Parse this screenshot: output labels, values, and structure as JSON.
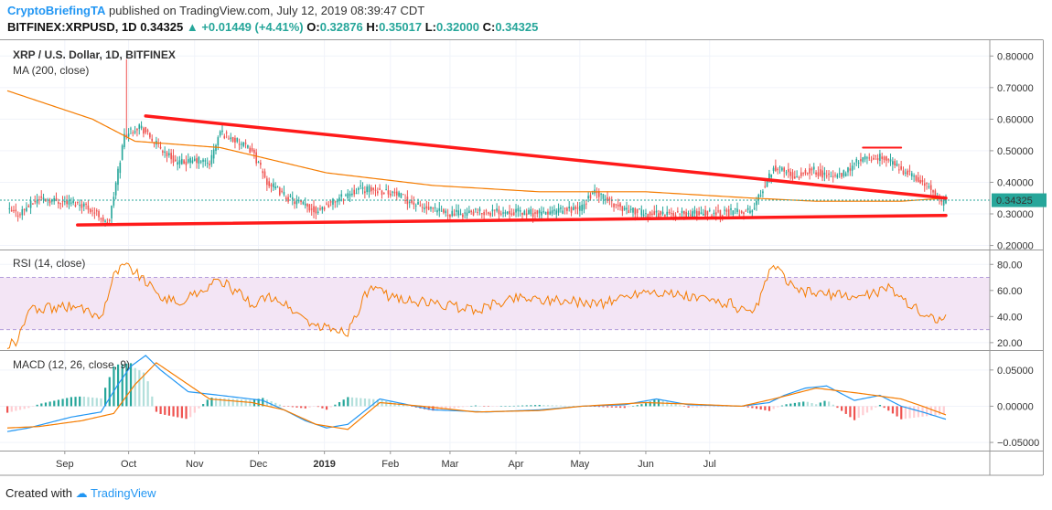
{
  "header": {
    "author": "CryptoBriefingTA",
    "published_text": "published on TradingView.com, July 12, 2019 08:39:47 CDT",
    "symbol": "BITFINEX:XRPUSD, 1D",
    "last": "0.34325",
    "change": "+0.01449 (+4.41%)",
    "o_label": "O:",
    "o": "0.32876",
    "h_label": "H:",
    "h": "0.35017",
    "l_label": "L:",
    "l": "0.32000",
    "c_label": "C:",
    "c": "0.34325"
  },
  "footer": {
    "created_with": "Created with",
    "brand": "TradingView"
  },
  "colors": {
    "up": "#26a69a",
    "down": "#ef5350",
    "ma": "#f57c00",
    "trend": "#ff1a1a",
    "rsi": "#f57c00",
    "rsi_band": "#f3e5f5",
    "macd": "#2196f3",
    "signal": "#f57c00"
  },
  "chart_data": [
    {
      "type": "candlestick",
      "title": "XRP / U.S. Dollar, 1D, BITFINEX",
      "indicator_label": "MA (200, close)",
      "x_axis_labels": [
        "Sep",
        "Oct",
        "Nov",
        "Dec",
        "2019",
        "Feb",
        "Mar",
        "Apr",
        "May",
        "Jun",
        "Jul"
      ],
      "y_ticks": [
        0.2,
        0.3,
        0.4,
        0.5,
        0.6,
        0.7,
        0.8
      ],
      "y_tick_labels": [
        "0.20000",
        "0.30000",
        "0.40000",
        "0.50000",
        "0.60000",
        "0.70000",
        "0.80000"
      ],
      "ylim": [
        0.19,
        0.85
      ],
      "last_price_label": "0.34325",
      "last_price": 0.34325,
      "price_path_date_index": [
        0,
        5,
        15,
        25,
        36,
        44,
        46,
        48,
        55,
        62,
        70,
        80,
        90,
        95,
        100,
        115,
        122,
        132,
        145,
        165,
        180,
        195,
        200,
        210,
        235,
        250,
        260,
        270,
        275,
        288,
        300,
        320,
        350,
        360,
        370,
        378,
        385,
        392,
        400,
        412,
        418,
        425,
        432,
        439,
        441
      ],
      "price_path_close": [
        0.31,
        0.3,
        0.35,
        0.34,
        0.33,
        0.29,
        0.27,
        0.28,
        0.55,
        0.58,
        0.52,
        0.46,
        0.47,
        0.46,
        0.56,
        0.5,
        0.4,
        0.35,
        0.31,
        0.38,
        0.37,
        0.32,
        0.31,
        0.3,
        0.31,
        0.3,
        0.31,
        0.32,
        0.37,
        0.32,
        0.3,
        0.3,
        0.31,
        0.45,
        0.42,
        0.44,
        0.42,
        0.42,
        0.47,
        0.48,
        0.45,
        0.42,
        0.39,
        0.33,
        0.34325
      ],
      "ma200_date_index": [
        0,
        40,
        60,
        100,
        150,
        200,
        250,
        300,
        350,
        380,
        420,
        441
      ],
      "ma200_value": [
        0.69,
        0.6,
        0.53,
        0.51,
        0.43,
        0.39,
        0.37,
        0.37,
        0.35,
        0.34,
        0.34,
        0.35
      ],
      "trendlines": [
        {
          "name": "upper-resistance",
          "from": [
            65,
            0.61
          ],
          "to": [
            441,
            0.35
          ]
        },
        {
          "name": "lower-support",
          "from": [
            33,
            0.265
          ],
          "to": [
            441,
            0.295
          ]
        },
        {
          "name": "horizontal-resistance",
          "from": [
            402,
            0.51
          ],
          "to": [
            420,
            0.51
          ]
        }
      ]
    },
    {
      "type": "line",
      "title": "RSI (14, close)",
      "y_ticks": [
        20,
        40,
        60,
        80
      ],
      "y_tick_labels": [
        "20.00",
        "40.00",
        "60.00",
        "80.00"
      ],
      "ylim": [
        15,
        90
      ],
      "band": [
        30,
        70
      ],
      "rsi_date_index": [
        0,
        5,
        10,
        30,
        44,
        50,
        55,
        60,
        70,
        80,
        100,
        115,
        125,
        145,
        160,
        170,
        180,
        200,
        220,
        240,
        260,
        280,
        300,
        320,
        340,
        350,
        360,
        370,
        380,
        400,
        415,
        425,
        432,
        441
      ],
      "rsi_value": [
        18,
        22,
        45,
        48,
        40,
        72,
        80,
        75,
        58,
        50,
        68,
        50,
        55,
        32,
        28,
        62,
        55,
        50,
        45,
        55,
        52,
        50,
        60,
        55,
        50,
        40,
        80,
        60,
        58,
        55,
        62,
        48,
        40,
        38
      ]
    },
    {
      "type": "line+bar",
      "title": "MACD (12, 26, close, 9)",
      "y_ticks": [
        -0.05,
        0.0,
        0.05
      ],
      "y_tick_labels": [
        "−0.05000",
        "0.00000",
        "0.05000"
      ],
      "ylim": [
        -0.06,
        0.075
      ],
      "macd_date_index": [
        0,
        10,
        30,
        44,
        52,
        58,
        65,
        72,
        85,
        100,
        120,
        130,
        140,
        150,
        160,
        175,
        200,
        225,
        250,
        270,
        290,
        305,
        320,
        345,
        358,
        365,
        375,
        385,
        398,
        410,
        420,
        430,
        441
      ],
      "macd_value": [
        -0.035,
        -0.03,
        -0.015,
        -0.008,
        0.03,
        0.055,
        0.07,
        0.05,
        0.02,
        0.015,
        0.008,
        -0.005,
        -0.02,
        -0.03,
        -0.025,
        0.01,
        -0.005,
        -0.008,
        -0.005,
        0.0,
        0.002,
        0.01,
        0.002,
        0.0,
        0.005,
        0.015,
        0.025,
        0.028,
        0.008,
        0.015,
        0.0,
        -0.008,
        -0.018
      ],
      "signal_date_index": [
        0,
        15,
        35,
        50,
        60,
        70,
        80,
        95,
        115,
        130,
        145,
        160,
        175,
        195,
        220,
        250,
        270,
        300,
        320,
        345,
        360,
        380,
        400,
        420,
        430,
        441
      ],
      "signal_value": [
        -0.03,
        -0.028,
        -0.02,
        -0.01,
        0.03,
        0.06,
        0.04,
        0.01,
        0.005,
        -0.005,
        -0.025,
        -0.032,
        0.005,
        0.0,
        -0.008,
        -0.006,
        0.0,
        0.005,
        0.003,
        0.0,
        0.01,
        0.025,
        0.018,
        0.01,
        0.0,
        -0.012
      ]
    }
  ]
}
